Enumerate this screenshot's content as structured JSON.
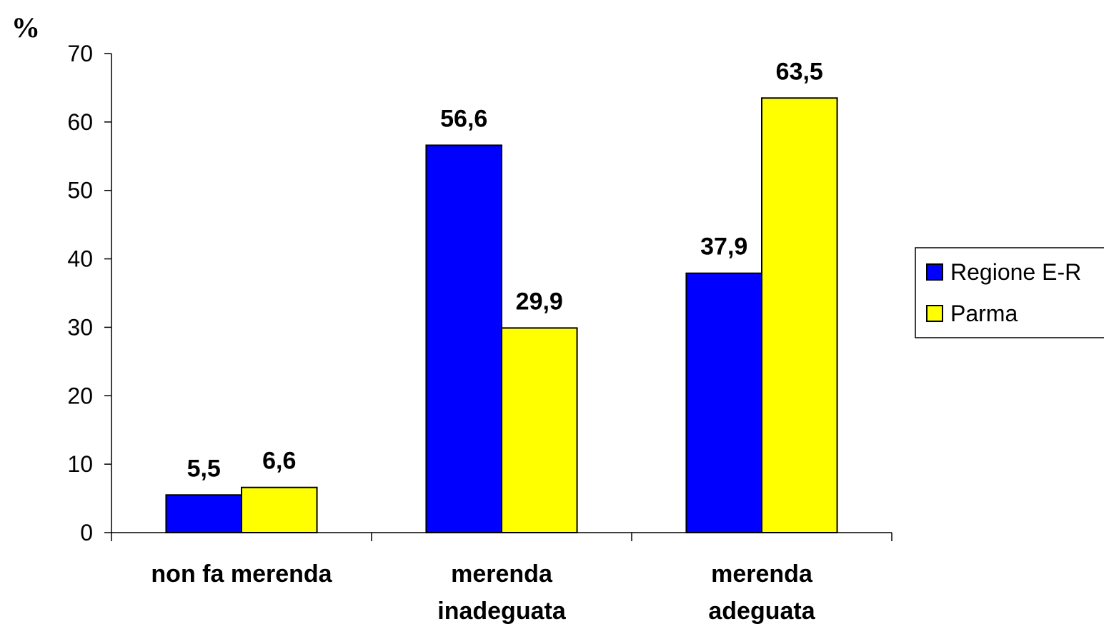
{
  "chart_data": {
    "type": "bar",
    "title": "",
    "xlabel": "",
    "ylabel": "%",
    "ylim": [
      0,
      70
    ],
    "yticks": [
      0,
      10,
      20,
      30,
      40,
      50,
      60,
      70
    ],
    "grid": false,
    "legend_position": "right",
    "categories": [
      [
        "non fa merenda"
      ],
      [
        "merenda",
        "inadeguata"
      ],
      [
        "merenda",
        "adeguata"
      ]
    ],
    "series": [
      {
        "name": "Regione E-R",
        "color": "#0000ff",
        "values": [
          5.5,
          56.6,
          37.9
        ],
        "labels": [
          "5,5",
          "56,6",
          "37,9"
        ]
      },
      {
        "name": "Parma",
        "color": "#ffff00",
        "values": [
          6.6,
          29.9,
          63.5
        ],
        "labels": [
          "6,6",
          "29,9",
          "63,5"
        ]
      }
    ]
  }
}
